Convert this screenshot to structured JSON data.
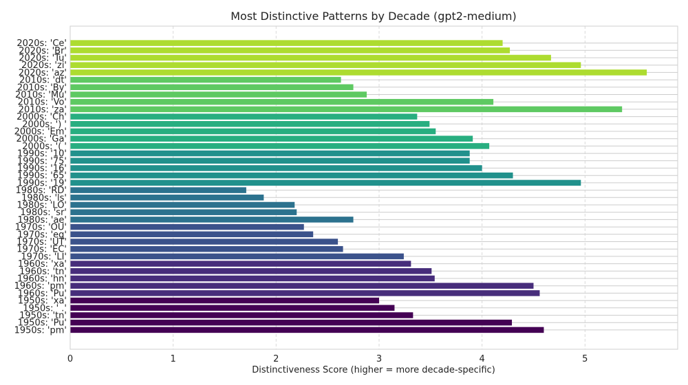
{
  "chart_data": {
    "type": "bar",
    "orientation": "horizontal",
    "title": "Most Distinctive Patterns by Decade (gpt2-medium)",
    "xlabel": "Distinctiveness Score (higher = more decade-specific)",
    "ylabel": "",
    "xlim": [
      0,
      5.9
    ],
    "xticks": [
      0,
      1,
      2,
      3,
      4,
      5
    ],
    "grid": true,
    "categories": [
      "2020s: 'Ce'",
      "2020s: 'Br'",
      "2020s: 'Tu'",
      "2020s: 'zi'",
      "2020s: 'az'",
      "2010s: 'dt'",
      "2010s: 'By'",
      "2010s: 'Mu'",
      "2010s: 'Vo'",
      "2010s: 'za'",
      "2000s: 'Ch'",
      "2000s: ') '",
      "2000s: 'Em'",
      "2000s: 'Ga'",
      "2000s: '( '",
      "1990s: '10'",
      "1990s: '75'",
      "1990s: '16'",
      "1990s: '65'",
      "1990s: '19'",
      "1980s: 'RD'",
      "1980s: 'ls'",
      "1980s: 'LO'",
      "1980s: 'sr'",
      "1980s: 'ae'",
      "1970s: 'OU'",
      "1970s: 'eq'",
      "1970s: 'UT'",
      "1970s: 'EC'",
      "1970s: 'LI'",
      "1960s: 'xa'",
      "1960s: 'tn'",
      "1960s: 'hn'",
      "1960s: 'pm'",
      "1960s: 'Pu'",
      "1950s: 'xa'",
      "1950s: ' .'",
      "1950s: 'tn'",
      "1950s: 'Pu'",
      "1950s: 'pm'"
    ],
    "values": [
      4.2,
      4.27,
      4.67,
      4.96,
      5.6,
      2.63,
      2.75,
      2.88,
      4.11,
      5.36,
      3.37,
      3.49,
      3.55,
      3.91,
      4.07,
      3.88,
      3.88,
      4.0,
      4.3,
      4.96,
      1.71,
      1.88,
      2.18,
      2.2,
      2.75,
      2.27,
      2.36,
      2.6,
      2.65,
      3.24,
      3.31,
      3.51,
      3.54,
      4.5,
      4.56,
      3.0,
      3.15,
      3.33,
      4.29,
      4.6
    ],
    "decade_colors": {
      "2020s": "#addc30",
      "2010s": "#5ec962",
      "2000s": "#28ae80",
      "1990s": "#21918c",
      "1980s": "#2c728e",
      "1970s": "#3b528b",
      "1960s": "#472d7b",
      "1950s": "#440154"
    }
  }
}
